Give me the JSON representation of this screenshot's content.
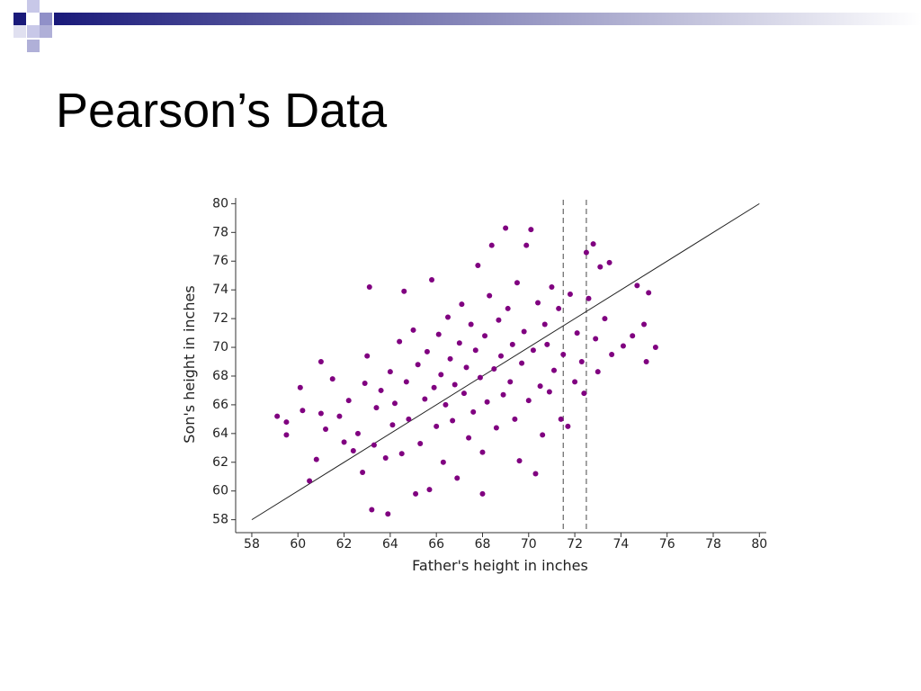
{
  "title": "Pearson’s Data",
  "chart_data": {
    "type": "scatter",
    "x_label": "Father's height in inches",
    "y_label": "Son's height in inches",
    "color": "#800080",
    "xlim": [
      57.3,
      80.3
    ],
    "ylim": [
      57.1,
      80.4
    ],
    "xticks": [
      58,
      60,
      62,
      64,
      66,
      68,
      70,
      72,
      74,
      76,
      78,
      80
    ],
    "yticks": [
      58,
      60,
      62,
      64,
      66,
      68,
      70,
      72,
      74,
      76,
      78,
      80
    ],
    "identity_line": [
      58,
      80
    ],
    "vlines": [
      71.5,
      72.5
    ],
    "x": [
      59.1,
      59.5,
      59.5,
      60.1,
      60.2,
      60.5,
      60.8,
      61.0,
      61.0,
      61.2,
      61.5,
      61.8,
      62.0,
      62.2,
      62.4,
      62.6,
      62.8,
      62.9,
      63.0,
      63.1,
      63.2,
      63.3,
      63.4,
      63.6,
      63.8,
      63.9,
      64.0,
      64.1,
      64.2,
      64.4,
      64.5,
      64.6,
      64.7,
      64.8,
      65.0,
      65.1,
      65.2,
      65.3,
      65.5,
      65.6,
      65.7,
      65.8,
      65.9,
      66.0,
      66.1,
      66.2,
      66.3,
      66.4,
      66.5,
      66.6,
      66.7,
      66.8,
      66.9,
      67.0,
      67.1,
      67.2,
      67.3,
      67.4,
      67.5,
      67.6,
      67.7,
      67.8,
      67.9,
      68.0,
      68.0,
      68.1,
      68.2,
      68.3,
      68.4,
      68.5,
      68.6,
      68.7,
      68.8,
      68.9,
      69.0,
      69.1,
      69.2,
      69.3,
      69.4,
      69.5,
      69.6,
      69.7,
      69.8,
      69.9,
      70.0,
      70.1,
      70.2,
      70.3,
      70.4,
      70.5,
      70.6,
      70.7,
      70.8,
      70.9,
      71.0,
      71.1,
      71.3,
      71.4,
      71.5,
      71.7,
      71.8,
      72.0,
      72.1,
      72.3,
      72.4,
      72.5,
      72.6,
      72.8,
      72.9,
      73.0,
      73.1,
      73.3,
      73.5,
      73.6,
      74.1,
      74.5,
      74.7,
      75.0,
      75.1,
      75.2,
      75.5
    ],
    "values": [
      65.2,
      64.8,
      63.9,
      67.2,
      65.6,
      60.7,
      62.2,
      69.0,
      65.4,
      64.3,
      67.8,
      65.2,
      63.4,
      66.3,
      62.8,
      64.0,
      61.3,
      67.5,
      69.4,
      74.2,
      58.7,
      63.2,
      65.8,
      67.0,
      62.3,
      58.4,
      68.3,
      64.6,
      66.1,
      70.4,
      62.6,
      73.9,
      67.6,
      65.0,
      71.2,
      59.8,
      68.8,
      63.3,
      66.4,
      69.7,
      60.1,
      74.7,
      67.2,
      64.5,
      70.9,
      68.1,
      62.0,
      66.0,
      72.1,
      69.2,
      64.9,
      67.4,
      60.9,
      70.3,
      73.0,
      66.8,
      68.6,
      63.7,
      71.6,
      65.5,
      69.8,
      75.7,
      67.9,
      59.8,
      62.7,
      70.8,
      66.2,
      73.6,
      77.1,
      68.5,
      64.4,
      71.9,
      69.4,
      66.7,
      78.3,
      72.7,
      67.6,
      70.2,
      65.0,
      74.5,
      62.1,
      68.9,
      71.1,
      77.1,
      66.3,
      78.2,
      69.8,
      61.2,
      73.1,
      67.3,
      63.9,
      71.6,
      70.2,
      66.9,
      74.2,
      68.4,
      72.7,
      65.0,
      69.5,
      64.5,
      73.7,
      67.6,
      71.0,
      69.0,
      66.8,
      76.6,
      73.4,
      77.2,
      70.6,
      68.3,
      75.6,
      72.0,
      75.9,
      69.5,
      70.1,
      70.8,
      74.3,
      71.6,
      69.0,
      73.8,
      70.0
    ]
  }
}
